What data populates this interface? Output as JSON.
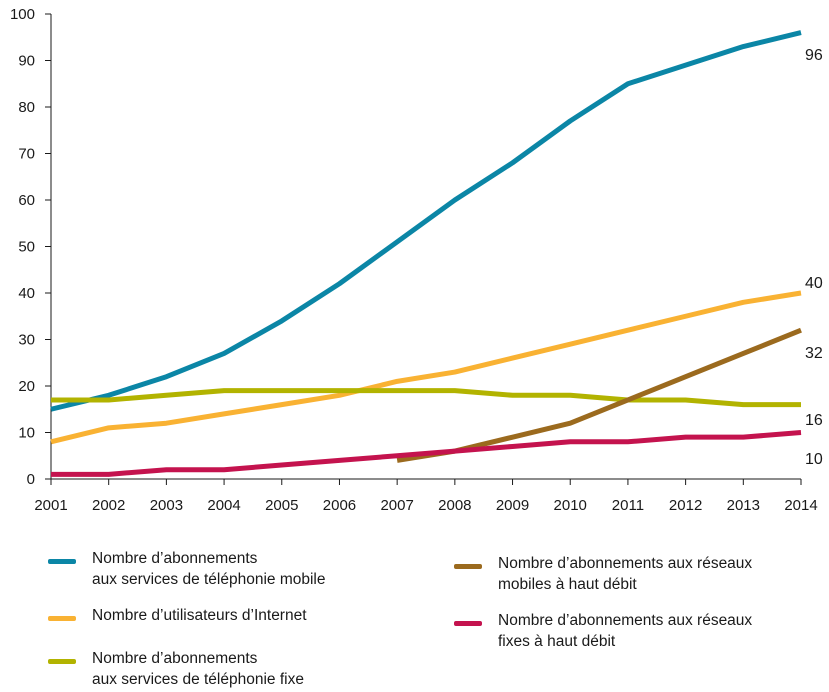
{
  "chart_data": {
    "type": "line",
    "title": "",
    "xlabel": "",
    "ylabel": "",
    "x": [
      2001,
      2002,
      2003,
      2004,
      2005,
      2006,
      2007,
      2008,
      2009,
      2010,
      2011,
      2012,
      2013,
      2014
    ],
    "ylim": [
      0,
      100
    ],
    "yticks": [
      0,
      10,
      20,
      30,
      40,
      50,
      60,
      70,
      80,
      90,
      100
    ],
    "x_tick_labels": [
      "2001",
      "2002",
      "2003",
      "2004",
      "2005",
      "2006",
      "2007",
      "2008",
      "2009",
      "2010",
      "2011",
      "2012",
      "2013",
      "2014"
    ],
    "y_tick_labels": [
      "0",
      "10",
      "20",
      "30",
      "40",
      "50",
      "60",
      "70",
      "80",
      "90",
      "100"
    ],
    "grid": false,
    "legend_position": "bottom",
    "series": [
      {
        "name": "Nombre d’abonnements\naux services de téléphonie mobile",
        "color": "#0b86a6",
        "values": [
          15,
          18,
          22,
          27,
          34,
          42,
          51,
          60,
          68,
          77,
          85,
          89,
          93,
          96
        ],
        "end_label": "96"
      },
      {
        "name": "Nombre d’utilisateurs d’Internet",
        "color": "#f9b233",
        "values": [
          8,
          11,
          12,
          14,
          16,
          18,
          21,
          23,
          26,
          29,
          32,
          35,
          38,
          40
        ],
        "end_label": "40"
      },
      {
        "name": "Nombre d’abonnements\naux services de téléphonie fixe",
        "color": "#b2b300",
        "values": [
          17,
          17,
          18,
          19,
          19,
          19,
          19,
          19,
          18,
          18,
          17,
          17,
          16,
          16
        ],
        "end_label": "16"
      },
      {
        "name": "Nombre d’abonnements aux réseaux\nmobiles à haut débit",
        "color": "#9b6a1e",
        "values": [
          null,
          null,
          null,
          null,
          null,
          null,
          4,
          6,
          9,
          12,
          17,
          22,
          27,
          32
        ],
        "end_label": "32"
      },
      {
        "name": "Nombre d’abonnements aux réseaux\nfixes à haut débit",
        "color": "#c4134e",
        "values": [
          1,
          1,
          2,
          2,
          3,
          4,
          5,
          6,
          7,
          8,
          8,
          9,
          9,
          10
        ],
        "end_label": "10"
      }
    ]
  }
}
